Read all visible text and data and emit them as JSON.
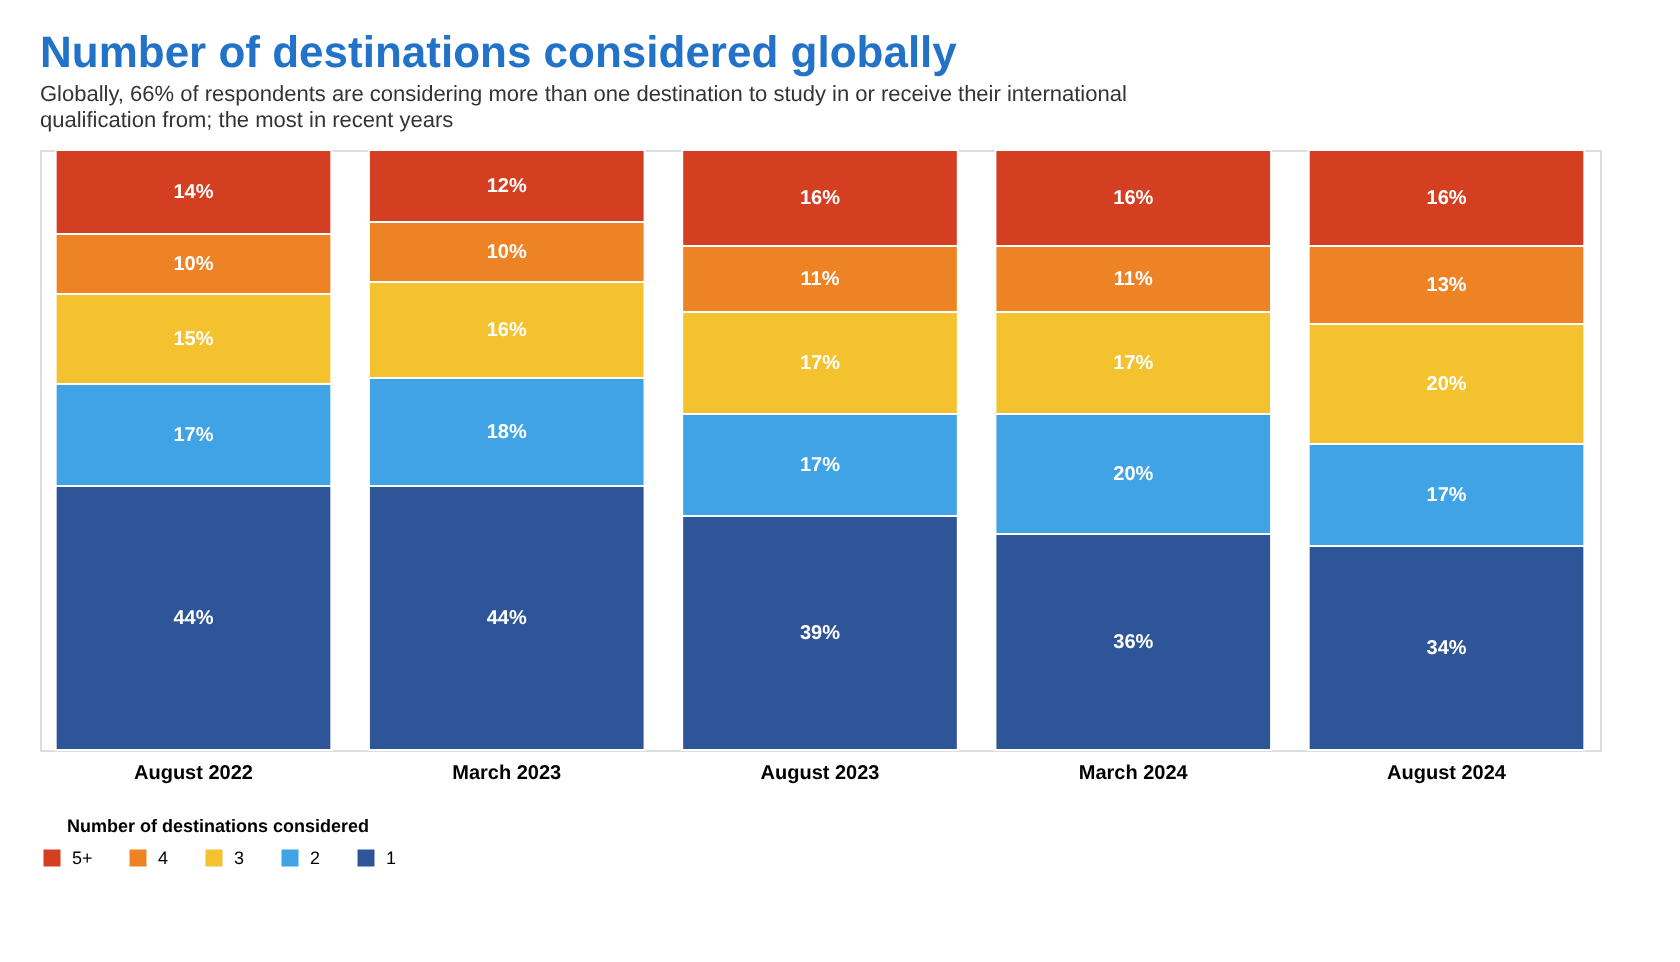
{
  "chart_data": {
    "type": "bar",
    "stacked": true,
    "title": "Number of destinations considered globally",
    "subtitle": "Globally, 66% of respondents are considering more than one destination to study in or receive their international qualification from; the most in recent years",
    "legend_title": "Number of destinations considered",
    "legend": "bottom",
    "categories": [
      "August 2022",
      "March 2023",
      "August 2023",
      "March 2024",
      "August 2024"
    ],
    "series": [
      {
        "name": "1",
        "color": "#2e5597",
        "values": [
          44,
          44,
          39,
          36,
          34
        ],
        "value_labels": [
          "44%",
          "44%",
          "39%",
          "36%",
          "34%"
        ]
      },
      {
        "name": "2",
        "color": "#3fa3e6",
        "values": [
          17,
          18,
          17,
          20,
          17
        ],
        "value_labels": [
          "17%",
          "18%",
          "17%",
          "20%",
          "17%"
        ]
      },
      {
        "name": "3",
        "color": "#f4c12f",
        "values": [
          15,
          16,
          17,
          17,
          20
        ],
        "value_labels": [
          "15%",
          "16%",
          "17%",
          "17%",
          "20%"
        ]
      },
      {
        "name": "4",
        "color": "#ee8326",
        "values": [
          10,
          10,
          11,
          11,
          13
        ],
        "value_labels": [
          "10%",
          "10%",
          "11%",
          "11%",
          "13%"
        ]
      },
      {
        "name": "5+",
        "color": "#d43e21",
        "values": [
          14,
          12,
          16,
          16,
          16
        ],
        "value_labels": [
          "14%",
          "12%",
          "16%",
          "16%",
          "16%"
        ]
      }
    ]
  }
}
